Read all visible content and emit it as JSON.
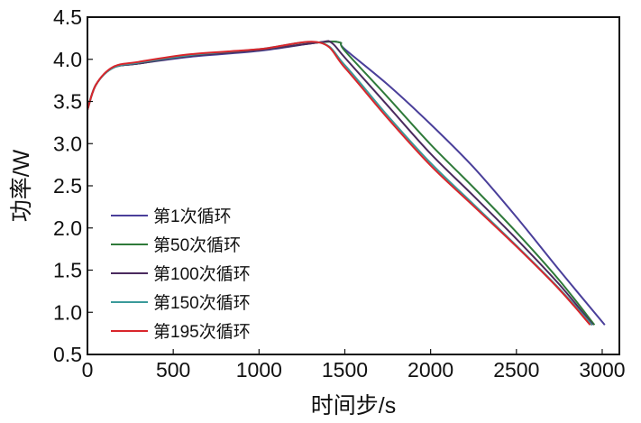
{
  "chart_data": {
    "type": "line",
    "title": "",
    "xlabel": "时间步/s",
    "ylabel": "功率/W",
    "xlim": [
      0,
      3100
    ],
    "ylim": [
      0.5,
      4.5
    ],
    "xticks": [
      0,
      500,
      1000,
      1500,
      2000,
      2500,
      3000
    ],
    "yticks": [
      0.5,
      1.0,
      1.5,
      2.0,
      2.5,
      3.0,
      3.5,
      4.0,
      4.5
    ],
    "xtick_labels": [
      "0",
      "500",
      "1000",
      "1500",
      "2000",
      "2500",
      "3000"
    ],
    "ytick_labels": [
      "0.5",
      "1.0",
      "1.5",
      "2.0",
      "2.5",
      "3.0",
      "3.5",
      "4.0",
      "4.5"
    ],
    "grid": false,
    "legend_position": "bottom-left",
    "series": [
      {
        "name": "第1次循环",
        "color": "#4a3f9a",
        "x": [
          0,
          50,
          150,
          300,
          600,
          1000,
          1350,
          1470,
          1500,
          1750,
          2000,
          2250,
          2500,
          2750,
          3015
        ],
        "y": [
          3.4,
          3.7,
          3.9,
          3.95,
          4.03,
          4.1,
          4.2,
          4.2,
          4.12,
          3.7,
          3.23,
          2.72,
          2.13,
          1.5,
          0.85
        ]
      },
      {
        "name": "第50次循环",
        "color": "#2f7a3a",
        "x": [
          0,
          50,
          150,
          300,
          600,
          1000,
          1350,
          1470,
          1500,
          1750,
          2000,
          2250,
          2500,
          2750,
          2955
        ],
        "y": [
          3.4,
          3.7,
          3.9,
          3.95,
          4.04,
          4.11,
          4.2,
          4.2,
          4.1,
          3.55,
          2.99,
          2.48,
          1.95,
          1.38,
          0.85
        ]
      },
      {
        "name": "第100次循环",
        "color": "#4a2a5e",
        "x": [
          0,
          50,
          150,
          300,
          600,
          1000,
          1350,
          1420,
          1500,
          1750,
          2000,
          2250,
          2500,
          2750,
          2945
        ],
        "y": [
          3.4,
          3.7,
          3.9,
          3.95,
          4.04,
          4.11,
          4.2,
          4.2,
          4.02,
          3.45,
          2.88,
          2.38,
          1.87,
          1.33,
          0.85
        ]
      },
      {
        "name": "第150次循环",
        "color": "#3a9a9a",
        "x": [
          0,
          50,
          150,
          300,
          600,
          1000,
          1350,
          1500,
          1750,
          2000,
          2250,
          2500,
          2750,
          2940
        ],
        "y": [
          3.4,
          3.7,
          3.9,
          3.96,
          4.05,
          4.12,
          4.2,
          3.93,
          3.33,
          2.77,
          2.28,
          1.79,
          1.28,
          0.85
        ]
      },
      {
        "name": "第195次循环",
        "color": "#d9262c",
        "x": [
          0,
          50,
          150,
          300,
          600,
          1000,
          1350,
          1500,
          1750,
          2000,
          2250,
          2500,
          2750,
          2930
        ],
        "y": [
          3.4,
          3.7,
          3.91,
          3.97,
          4.06,
          4.12,
          4.2,
          3.9,
          3.3,
          2.74,
          2.26,
          1.78,
          1.27,
          0.85
        ]
      }
    ]
  }
}
